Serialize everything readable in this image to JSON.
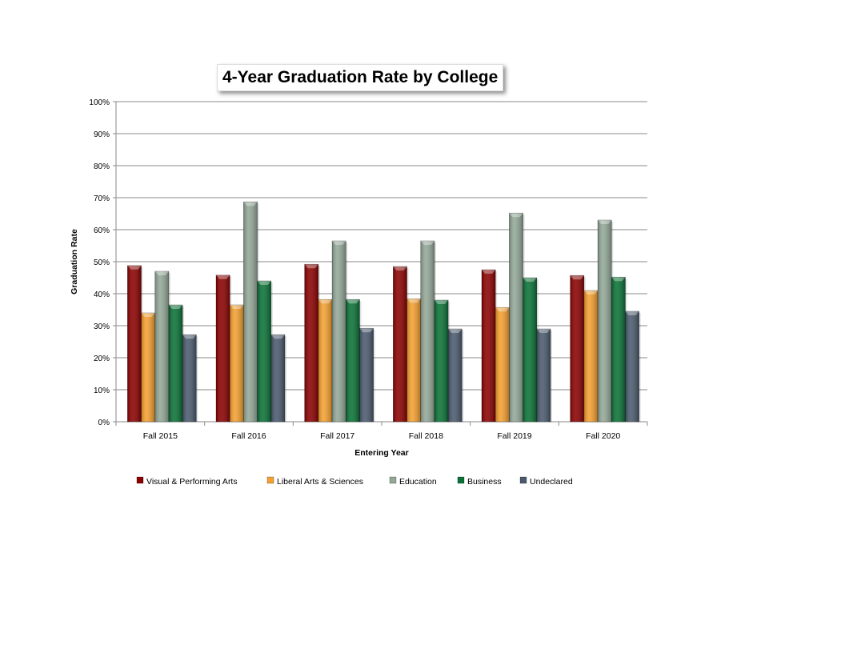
{
  "chart_data": {
    "type": "bar",
    "title": "4-Year Graduation Rate by College",
    "xlabel": "Entering Year",
    "ylabel": "Graduation Rate",
    "ylim": [
      0,
      100
    ],
    "yticks": [
      "0%",
      "10%",
      "20%",
      "30%",
      "40%",
      "50%",
      "60%",
      "70%",
      "80%",
      "90%",
      "100%"
    ],
    "grid": true,
    "legend": "bottom",
    "categories": [
      "Fall 2015",
      "Fall 2016",
      "Fall 2017",
      "Fall 2018",
      "Fall 2019",
      "Fall 2020"
    ],
    "series": [
      {
        "name": "Visual & Performing Arts",
        "color": "#8b0000",
        "values": [
          48.8,
          45.8,
          49.2,
          48.5,
          47.5,
          45.7
        ]
      },
      {
        "name": "Liberal Arts & Sciences",
        "color": "#f5a030",
        "values": [
          34.0,
          36.5,
          38.2,
          38.4,
          35.7,
          41.0
        ]
      },
      {
        "name": "Education",
        "color": "#93a898",
        "values": [
          47.0,
          68.7,
          56.5,
          56.5,
          65.2,
          63.0
        ]
      },
      {
        "name": "Business",
        "color": "#0a7236",
        "values": [
          36.5,
          44.0,
          38.2,
          38.0,
          45.0,
          45.2
        ]
      },
      {
        "name": "Undeclared",
        "color": "#4a5a6e",
        "values": [
          27.2,
          27.2,
          29.2,
          29.0,
          29.0,
          34.5
        ]
      }
    ]
  }
}
